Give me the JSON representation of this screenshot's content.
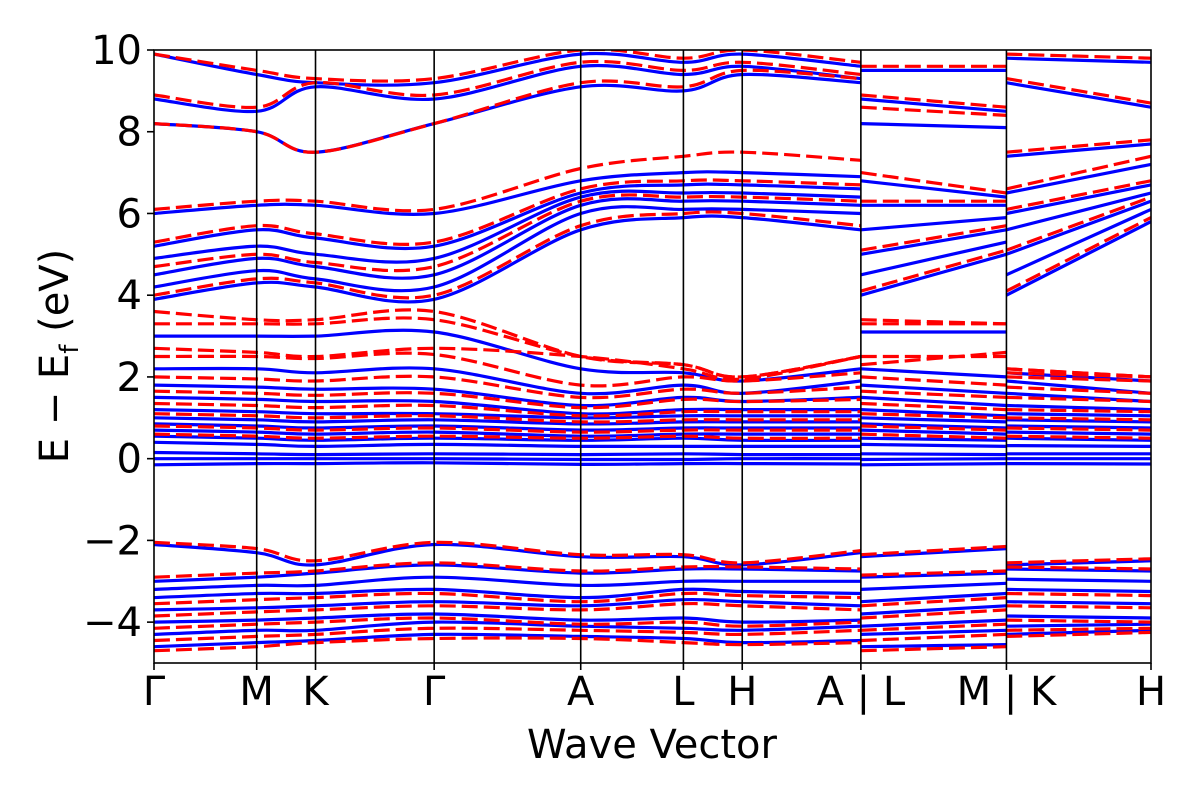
{
  "chart_data": {
    "type": "line",
    "title": "",
    "xlabel": "Wave Vector",
    "ylabel_parts": {
      "main": "E − E",
      "sub": "f",
      "unit": " (eV)"
    },
    "ylim": [
      -5,
      10
    ],
    "yticks": [
      -4,
      -2,
      0,
      2,
      4,
      6,
      8,
      10
    ],
    "ytick_labels": [
      "−4",
      "−2",
      "0",
      "2",
      "4",
      "6",
      "8",
      "10"
    ],
    "kpath": [
      {
        "label": "Γ",
        "pos": 0.0
      },
      {
        "label": "M",
        "pos": 0.103
      },
      {
        "label": "K",
        "pos": 0.162
      },
      {
        "label": "Γ",
        "pos": 0.281
      },
      {
        "label": "A",
        "pos": 0.428
      },
      {
        "label": "L",
        "pos": 0.531
      },
      {
        "label": "H",
        "pos": 0.59
      },
      {
        "label": "A | L",
        "pos": 0.709
      },
      {
        "label": "M | K",
        "pos": 0.855
      },
      {
        "label": "H",
        "pos": 1.0
      }
    ],
    "series": [
      {
        "name": "blue-solid",
        "color": "#0000ff",
        "style": "solid",
        "bands": [
          [
            -4.6,
            -4.5,
            -4.45,
            -4.3,
            -4.35,
            -4.4,
            -4.5,
            -4.45,
            -4.6,
            -4.55,
            -4.3,
            -4.2
          ],
          [
            -4.3,
            -4.2,
            -4.2,
            -4.0,
            -4.1,
            -4.15,
            -4.2,
            -4.1,
            -4.3,
            -4.2,
            -4.1,
            -4.05
          ],
          [
            -4.0,
            -3.95,
            -3.9,
            -3.8,
            -3.95,
            -3.9,
            -4.0,
            -3.95,
            -4.1,
            -3.95,
            -3.85,
            -3.9
          ],
          [
            -3.7,
            -3.65,
            -3.6,
            -3.5,
            -3.6,
            -3.45,
            -3.5,
            -3.6,
            -3.8,
            -3.6,
            -3.5,
            -3.55
          ],
          [
            -3.4,
            -3.3,
            -3.3,
            -3.2,
            -3.4,
            -3.2,
            -3.25,
            -3.3,
            -3.5,
            -3.3,
            -3.2,
            -3.25
          ],
          [
            -3.2,
            -3.1,
            -3.1,
            -2.9,
            -3.1,
            -3.0,
            -3.0,
            -3.0,
            -3.2,
            -3.05,
            -2.95,
            -3.0
          ],
          [
            -3.0,
            -2.9,
            -2.8,
            -2.6,
            -2.8,
            -2.7,
            -2.7,
            -2.75,
            -2.9,
            -2.8,
            -2.7,
            -2.75
          ],
          [
            -2.1,
            -2.3,
            -2.6,
            -2.1,
            -2.4,
            -2.4,
            -2.6,
            -2.3,
            -2.4,
            -2.2,
            -2.6,
            -2.5
          ],
          [
            -0.15,
            -0.12,
            -0.12,
            -0.1,
            -0.14,
            -0.12,
            -0.12,
            -0.13,
            -0.15,
            -0.12,
            -0.12,
            -0.13
          ],
          [
            0.0,
            0.0,
            0.0,
            0.0,
            -0.02,
            -0.02,
            0.0,
            0.0,
            -0.02,
            0.0,
            0.0,
            0.0
          ],
          [
            0.15,
            0.12,
            0.1,
            0.12,
            0.1,
            0.12,
            0.1,
            0.1,
            0.12,
            0.1,
            0.12,
            0.12
          ],
          [
            0.4,
            0.35,
            0.3,
            0.35,
            0.3,
            0.3,
            0.3,
            0.3,
            0.35,
            0.3,
            0.32,
            0.3
          ],
          [
            0.55,
            0.5,
            0.45,
            0.5,
            0.45,
            0.5,
            0.45,
            0.45,
            0.5,
            0.45,
            0.5,
            0.45
          ],
          [
            0.7,
            0.65,
            0.6,
            0.65,
            0.55,
            0.6,
            0.6,
            0.6,
            0.7,
            0.6,
            0.65,
            0.6
          ],
          [
            0.85,
            0.8,
            0.75,
            0.8,
            0.7,
            0.75,
            0.75,
            0.75,
            0.85,
            0.75,
            0.8,
            0.75
          ],
          [
            1.0,
            0.95,
            0.9,
            0.95,
            0.85,
            0.9,
            0.9,
            0.9,
            1.0,
            0.9,
            0.95,
            0.9
          ],
          [
            1.2,
            1.15,
            1.1,
            1.1,
            1.0,
            1.05,
            1.05,
            1.05,
            1.2,
            1.05,
            1.1,
            1.05
          ],
          [
            1.5,
            1.45,
            1.4,
            1.4,
            1.1,
            1.2,
            1.2,
            1.2,
            1.5,
            1.3,
            1.3,
            1.2
          ],
          [
            1.8,
            1.75,
            1.7,
            1.7,
            1.3,
            1.5,
            1.4,
            1.5,
            1.8,
            1.6,
            1.6,
            1.4
          ],
          [
            2.2,
            2.2,
            2.1,
            2.2,
            1.6,
            1.8,
            1.6,
            1.9,
            2.2,
            2.0,
            1.9,
            1.6
          ],
          [
            3.0,
            3.0,
            3.0,
            3.1,
            2.2,
            2.1,
            1.9,
            2.2,
            3.1,
            3.1,
            2.1,
            1.9
          ],
          [
            3.9,
            4.3,
            4.2,
            3.9,
            5.6,
            5.9,
            5.9,
            5.6,
            4.0,
            5.0,
            4.0,
            5.8
          ],
          [
            4.2,
            4.6,
            4.4,
            4.2,
            6.0,
            6.1,
            6.1,
            6.0,
            4.5,
            5.3,
            4.5,
            6.1
          ],
          [
            4.5,
            4.9,
            4.7,
            4.5,
            6.2,
            6.3,
            6.3,
            6.2,
            5.0,
            5.6,
            5.0,
            6.3
          ],
          [
            4.9,
            5.2,
            5.0,
            4.9,
            6.4,
            6.5,
            6.5,
            6.4,
            5.6,
            5.9,
            5.6,
            6.5
          ],
          [
            5.2,
            5.6,
            5.4,
            5.2,
            6.5,
            6.7,
            6.7,
            6.6,
            6.2,
            6.2,
            6.0,
            6.7
          ],
          [
            6.0,
            6.2,
            6.2,
            6.0,
            6.8,
            7.0,
            7.0,
            6.9,
            6.8,
            6.4,
            6.5,
            7.2
          ],
          [
            8.2,
            8.0,
            7.5,
            8.2,
            9.1,
            9.0,
            9.4,
            9.2,
            8.2,
            8.1,
            7.4,
            7.7
          ],
          [
            8.8,
            8.5,
            9.1,
            8.8,
            9.6,
            9.4,
            9.6,
            9.3,
            8.8,
            8.5,
            9.2,
            8.6
          ],
          [
            9.9,
            9.4,
            9.2,
            9.2,
            9.9,
            9.7,
            9.9,
            9.6,
            9.5,
            9.5,
            9.8,
            9.7
          ]
        ]
      },
      {
        "name": "red-dashed",
        "color": "#ff0000",
        "style": "dashed",
        "bands": [
          [
            -4.7,
            -4.6,
            -4.5,
            -4.4,
            -4.4,
            -4.5,
            -4.55,
            -4.5,
            -4.7,
            -4.6,
            -4.35,
            -4.25
          ],
          [
            -4.45,
            -4.35,
            -4.3,
            -4.15,
            -4.2,
            -4.25,
            -4.3,
            -4.2,
            -4.45,
            -4.3,
            -4.2,
            -4.15
          ],
          [
            -4.15,
            -4.05,
            -4.0,
            -3.9,
            -4.05,
            -4.0,
            -4.1,
            -4.0,
            -4.2,
            -4.05,
            -3.95,
            -4.0
          ],
          [
            -3.85,
            -3.75,
            -3.7,
            -3.6,
            -3.7,
            -3.55,
            -3.6,
            -3.7,
            -3.9,
            -3.7,
            -3.6,
            -3.65
          ],
          [
            -3.55,
            -3.45,
            -3.4,
            -3.3,
            -3.5,
            -3.3,
            -3.35,
            -3.4,
            -3.6,
            -3.4,
            -3.3,
            -3.35
          ],
          [
            -2.9,
            -2.8,
            -2.75,
            -2.55,
            -2.75,
            -2.65,
            -2.65,
            -2.7,
            -2.85,
            -2.75,
            -2.65,
            -2.7
          ],
          [
            -2.05,
            -2.2,
            -2.5,
            -2.05,
            -2.35,
            -2.35,
            -2.55,
            -2.25,
            -2.35,
            -2.15,
            -2.55,
            -2.45
          ],
          [
            0.6,
            0.55,
            0.5,
            0.55,
            0.5,
            0.55,
            0.5,
            0.5,
            0.6,
            0.5,
            0.55,
            0.5
          ],
          [
            0.8,
            0.75,
            0.7,
            0.75,
            0.65,
            0.7,
            0.7,
            0.7,
            0.8,
            0.7,
            0.75,
            0.7
          ],
          [
            1.1,
            1.05,
            1.0,
            1.05,
            0.9,
            0.95,
            0.95,
            0.95,
            1.1,
            1.0,
            1.0,
            0.95
          ],
          [
            1.35,
            1.3,
            1.25,
            1.3,
            1.05,
            1.15,
            1.15,
            1.15,
            1.35,
            1.2,
            1.2,
            1.15
          ],
          [
            1.65,
            1.6,
            1.55,
            1.6,
            1.25,
            1.45,
            1.4,
            1.45,
            1.65,
            1.5,
            1.5,
            1.4
          ],
          [
            2.0,
            1.95,
            1.9,
            2.0,
            1.5,
            1.7,
            1.6,
            1.75,
            2.0,
            1.8,
            1.75,
            1.6
          ],
          [
            2.5,
            2.5,
            2.45,
            2.55,
            1.8,
            2.0,
            1.9,
            2.1,
            2.5,
            2.5,
            2.0,
            1.9
          ],
          [
            2.7,
            2.6,
            2.5,
            2.7,
            2.5,
            2.2,
            1.95,
            2.5,
            2.3,
            2.6,
            2.1,
            2.0
          ],
          [
            3.3,
            3.3,
            3.3,
            3.4,
            2.5,
            2.3,
            2.0,
            2.5,
            3.3,
            3.3,
            2.2,
            2.0
          ],
          [
            3.6,
            3.4,
            3.4,
            3.6,
            2.5,
            2.3,
            2.0,
            2.5,
            3.4,
            3.3,
            2.2,
            2.0
          ],
          [
            4.0,
            4.4,
            4.3,
            4.0,
            5.7,
            6.0,
            6.0,
            5.7,
            4.1,
            5.1,
            4.1,
            5.9
          ],
          [
            4.7,
            5.0,
            4.8,
            4.7,
            6.3,
            6.4,
            6.4,
            6.3,
            5.1,
            5.7,
            5.1,
            6.4
          ],
          [
            5.3,
            5.7,
            5.5,
            5.3,
            6.6,
            6.8,
            6.8,
            6.7,
            6.3,
            6.3,
            6.1,
            6.8
          ],
          [
            6.1,
            6.3,
            6.3,
            6.1,
            7.1,
            7.4,
            7.5,
            7.3,
            7.0,
            6.5,
            6.6,
            7.4
          ],
          [
            8.2,
            8.0,
            7.5,
            8.2,
            9.2,
            9.1,
            9.5,
            9.3,
            8.6,
            8.4,
            7.5,
            7.8
          ],
          [
            8.9,
            8.6,
            9.2,
            8.9,
            9.7,
            9.5,
            9.7,
            9.4,
            8.9,
            8.6,
            9.3,
            8.7
          ],
          [
            9.9,
            9.5,
            9.3,
            9.3,
            10.0,
            9.8,
            10.0,
            9.7,
            9.6,
            9.6,
            9.9,
            9.8
          ]
        ]
      }
    ]
  }
}
